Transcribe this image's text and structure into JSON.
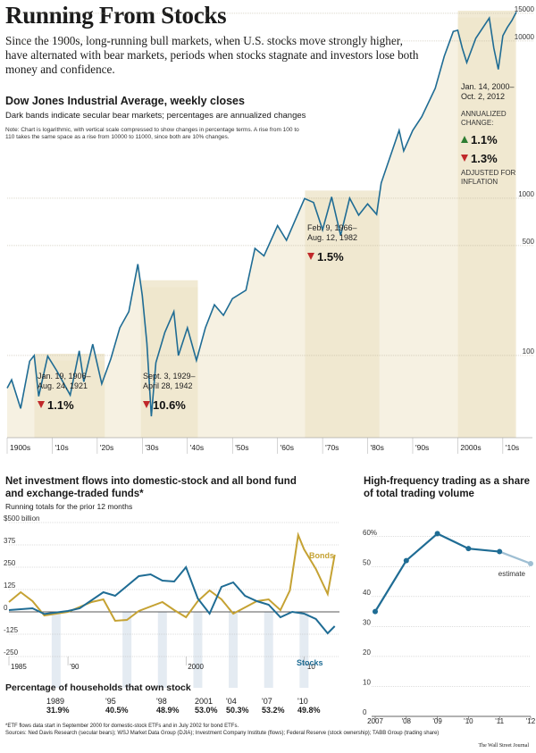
{
  "headline": "Running From Stocks",
  "intro": "Since the 1900s, long-running bull markets, when U.S. stocks move strongly higher, have alternated with bear markets, periods when stocks stagnate and investors lose both money and confidence.",
  "dj": {
    "title": "Dow Jones Industrial Average, weekly closes",
    "subtitle": "Dark bands indicate secular bear markets; percentages are annualized changes",
    "note": "Note: Chart is logarithmic, with vertical scale compressed to show changes in percentage terms. A rise from 100 to 110 takes the same space as a rise from 10000 to 11000, since both are 10% changes.",
    "bands": [
      {
        "label": "Jan. 19, 1906–\nAug. 24, 1921",
        "change": "1.1%"
      },
      {
        "label": "Sept. 3, 1929–\nApril 28, 1942",
        "change": "10.6%"
      },
      {
        "label": "Feb. 9, 1966–\nAug. 12, 1982",
        "change": "1.5%"
      },
      {
        "label": "Jan. 14, 2000–\nOct. 2, 2012",
        "annualized": "ANNUALIZED\nCHANGE:",
        "change_up": "1.1%",
        "change_down": "1.3%",
        "adjusted": "ADJUSTED FOR\nINFLATION"
      }
    ]
  },
  "flows": {
    "title": "Net investment flows into domestic-stock and all bond fund and exchange-traded funds*",
    "subtitle": "Running totals for the prior 12 months",
    "y_top_label": "$500 billion",
    "series_bonds": "Bonds",
    "series_stocks": "Stocks"
  },
  "hft": {
    "title": "High-frequency trading as a share of total trading volume",
    "estimate_label": "estimate"
  },
  "ownership": {
    "title": "Percentage of households that own stock",
    "items": [
      {
        "year": "1989",
        "value": "31.9%"
      },
      {
        "year": "'95",
        "value": "40.5%"
      },
      {
        "year": "'98",
        "value": "48.9%"
      },
      {
        "year": "2001",
        "value": "53.0%"
      },
      {
        "year": "'04",
        "value": "50.3%"
      },
      {
        "year": "'07",
        "value": "53.2%"
      },
      {
        "year": "'10",
        "value": "49.8%"
      }
    ]
  },
  "footnote": "*ETF flows data start in September 2000 for domestic-stock ETFs and in July 2002 for bond ETFs.\nSources: Ned Davis Research (secular bears); WSJ Market Data Group (DJIA); Investment Company Institute (flows); Federal Reserve (stock ownership); TABB Group (trading share)",
  "credit": "The Wall Street Journal",
  "colors": {
    "band": "#efe6cc",
    "line": "#1f6c94",
    "bonds": "#c5a233",
    "up": "#2e7d32",
    "down": "#c0282a"
  },
  "chart_data": [
    {
      "type": "line",
      "title": "Dow Jones Industrial Average, weekly closes",
      "scale": "log",
      "y_ticks": [
        100,
        500,
        1000,
        10000,
        15000
      ],
      "x_ticks": [
        "1900s",
        "'10s",
        "'20s",
        "'30s",
        "'40s",
        "'50s",
        "'60s",
        "'70s",
        "'80s",
        "'90s",
        "2000s",
        "'10s"
      ],
      "ylim": [
        30,
        16000
      ],
      "xlim": [
        1900,
        2013
      ],
      "points": [
        [
          1900,
          62
        ],
        [
          1901,
          70
        ],
        [
          1903,
          46
        ],
        [
          1905,
          92
        ],
        [
          1906,
          100
        ],
        [
          1907,
          55
        ],
        [
          1909,
          99
        ],
        [
          1911,
          80
        ],
        [
          1914,
          56
        ],
        [
          1916,
          107
        ],
        [
          1917,
          68
        ],
        [
          1919,
          118
        ],
        [
          1921,
          66
        ],
        [
          1923,
          95
        ],
        [
          1925,
          150
        ],
        [
          1927,
          190
        ],
        [
          1929,
          381
        ],
        [
          1930,
          240
        ],
        [
          1931,
          120
        ],
        [
          1932,
          41
        ],
        [
          1933,
          90
        ],
        [
          1935,
          140
        ],
        [
          1937,
          190
        ],
        [
          1938,
          100
        ],
        [
          1940,
          150
        ],
        [
          1942,
          93
        ],
        [
          1944,
          150
        ],
        [
          1946,
          210
        ],
        [
          1948,
          180
        ],
        [
          1950,
          230
        ],
        [
          1953,
          260
        ],
        [
          1955,
          480
        ],
        [
          1957,
          430
        ],
        [
          1960,
          670
        ],
        [
          1962,
          540
        ],
        [
          1966,
          995
        ],
        [
          1968,
          940
        ],
        [
          1970,
          630
        ],
        [
          1972,
          1020
        ],
        [
          1974,
          580
        ],
        [
          1976,
          1000
        ],
        [
          1978,
          780
        ],
        [
          1980,
          920
        ],
        [
          1982,
          790
        ],
        [
          1983,
          1250
        ],
        [
          1987,
          2700
        ],
        [
          1988,
          2000
        ],
        [
          1990,
          2700
        ],
        [
          1992,
          3300
        ],
        [
          1995,
          5000
        ],
        [
          1997,
          8000
        ],
        [
          1999,
          11500
        ],
        [
          2000,
          11700
        ],
        [
          2001,
          9000
        ],
        [
          2002,
          7300
        ],
        [
          2004,
          10400
        ],
        [
          2007,
          14000
        ],
        [
          2008,
          9000
        ],
        [
          2009,
          6600
        ],
        [
          2010,
          10800
        ],
        [
          2011,
          12200
        ],
        [
          2012,
          13500
        ],
        [
          2013,
          15300
        ]
      ],
      "bear_bands": [
        [
          1906.05,
          1921.65
        ],
        [
          1929.67,
          1942.32
        ],
        [
          1966.1,
          1982.6
        ],
        [
          2000.04,
          2012.75
        ]
      ],
      "band_changes": [
        "-1.1%",
        "-10.6%",
        "-1.5%",
        "+1.1% (annualized); -1.3% adjusted for inflation"
      ]
    },
    {
      "type": "line",
      "title": "Net investment flows into domestic-stock and all bond fund and exchange-traded funds",
      "ylabel": "$ billion",
      "ylim": [
        -250,
        500
      ],
      "y_ticks": [
        -250,
        -125,
        0,
        125,
        250,
        375,
        500
      ],
      "x_ticks": [
        "1985",
        "'90",
        "2000",
        "'10"
      ],
      "xlim": [
        1985,
        2013
      ],
      "series": [
        {
          "name": "Stocks",
          "x": [
            1985,
            1987,
            1988,
            1990,
            1991,
            1993,
            1994,
            1996,
            1997,
            1998,
            1999,
            2000,
            2001,
            2002,
            2003,
            2004,
            2005,
            2006,
            2007,
            2008,
            2009,
            2010,
            2011,
            2012,
            2012.6
          ],
          "y": [
            10,
            20,
            -12,
            5,
            20,
            110,
            90,
            200,
            210,
            175,
            170,
            250,
            75,
            -10,
            140,
            165,
            90,
            60,
            40,
            -30,
            0,
            -10,
            -40,
            -120,
            -80
          ]
        },
        {
          "name": "Bonds",
          "x": [
            1985,
            1986,
            1987,
            1988,
            1990,
            1992,
            1993,
            1994,
            1995,
            1996,
            1998,
            1999,
            2000,
            2001,
            2002,
            2003,
            2004,
            2005,
            2006,
            2007,
            2008,
            2008.8,
            2009.5,
            2010,
            2011,
            2012,
            2012.6
          ],
          "y": [
            55,
            110,
            60,
            -20,
            0,
            55,
            70,
            -50,
            -45,
            5,
            55,
            10,
            -30,
            60,
            120,
            70,
            -10,
            25,
            60,
            70,
            10,
            120,
            430,
            350,
            240,
            100,
            320
          ]
        }
      ]
    },
    {
      "type": "line",
      "title": "High-frequency trading as a share of total trading volume",
      "ylim": [
        0,
        65
      ],
      "y_ticks": [
        0,
        10,
        20,
        30,
        40,
        50,
        "60%"
      ],
      "categories": [
        "2007",
        "'08",
        "'09",
        "'10",
        "'11",
        "'12"
      ],
      "series": [
        {
          "name": "",
          "values": [
            35,
            52,
            61,
            56,
            55,
            51
          ],
          "estimated_last": true
        }
      ]
    }
  ]
}
